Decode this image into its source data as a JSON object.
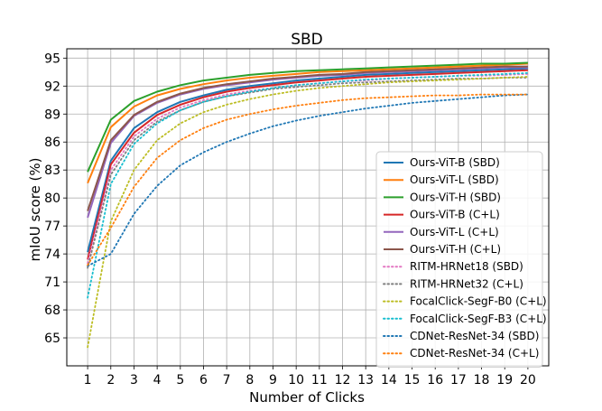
{
  "chart_data": {
    "type": "line",
    "title": "SBD",
    "xlabel": "Number of Clicks",
    "ylabel": "mIoU score (%)",
    "xlim": [
      0.1,
      20.9
    ],
    "ylim": [
      62,
      96
    ],
    "x": [
      1,
      2,
      3,
      4,
      5,
      6,
      7,
      8,
      9,
      10,
      11,
      12,
      13,
      14,
      15,
      16,
      17,
      18,
      19,
      20
    ],
    "x_ticks": [
      1,
      2,
      3,
      4,
      5,
      6,
      7,
      8,
      9,
      10,
      11,
      12,
      13,
      14,
      15,
      16,
      17,
      18,
      19,
      20
    ],
    "y_ticks": [
      65,
      68,
      71,
      74,
      77,
      80,
      83,
      86,
      89,
      92,
      95
    ],
    "grid": true,
    "legend_position": "lower-right",
    "series": [
      {
        "name": "Ours-ViT-B (SBD)",
        "color": "#1f77b4",
        "style": "solid",
        "values": [
          74.2,
          84.0,
          87.5,
          89.2,
          90.3,
          91.0,
          91.6,
          92.0,
          92.3,
          92.6,
          92.8,
          93.0,
          93.2,
          93.3,
          93.4,
          93.5,
          93.6,
          93.7,
          93.8,
          93.9
        ]
      },
      {
        "name": "Ours-ViT-L (SBD)",
        "color": "#ff7f0e",
        "style": "solid",
        "values": [
          81.6,
          87.6,
          89.8,
          91.0,
          91.7,
          92.2,
          92.6,
          92.9,
          93.1,
          93.3,
          93.5,
          93.6,
          93.7,
          93.8,
          93.9,
          94.0,
          94.1,
          94.2,
          94.3,
          94.4
        ]
      },
      {
        "name": "Ours-ViT-H (SBD)",
        "color": "#2ca02c",
        "style": "solid",
        "values": [
          82.8,
          88.4,
          90.4,
          91.4,
          92.1,
          92.6,
          92.9,
          93.2,
          93.4,
          93.6,
          93.7,
          93.8,
          93.9,
          94.0,
          94.1,
          94.2,
          94.3,
          94.4,
          94.4,
          94.5
        ]
      },
      {
        "name": "Ours-ViT-B (C+L)",
        "color": "#d62728",
        "style": "solid",
        "values": [
          73.4,
          83.6,
          87.0,
          88.9,
          90.0,
          90.8,
          91.4,
          91.8,
          92.1,
          92.4,
          92.6,
          92.8,
          93.0,
          93.1,
          93.2,
          93.3,
          93.4,
          93.5,
          93.6,
          93.7
        ]
      },
      {
        "name": "Ours-ViT-L (C+L)",
        "color": "#9467bd",
        "style": "solid",
        "values": [
          77.9,
          85.9,
          88.8,
          90.2,
          91.1,
          91.7,
          92.1,
          92.4,
          92.7,
          92.9,
          93.1,
          93.2,
          93.4,
          93.5,
          93.6,
          93.7,
          93.8,
          93.9,
          94.0,
          94.0
        ]
      },
      {
        "name": "Ours-ViT-H (C+L)",
        "color": "#8c564b",
        "style": "solid",
        "values": [
          78.6,
          86.2,
          88.9,
          90.3,
          91.2,
          91.8,
          92.2,
          92.5,
          92.8,
          93.0,
          93.2,
          93.3,
          93.5,
          93.6,
          93.7,
          93.8,
          93.9,
          94.0,
          94.1,
          94.1
        ]
      },
      {
        "name": "RITM-HRNet18 (SBD)",
        "color": "#e377c2",
        "style": "dotted",
        "values": [
          73.0,
          83.0,
          86.6,
          88.5,
          89.7,
          90.5,
          91.1,
          91.5,
          91.8,
          92.1,
          92.3,
          92.5,
          92.6,
          92.8,
          92.9,
          93.0,
          93.1,
          93.1,
          93.2,
          93.3
        ]
      },
      {
        "name": "RITM-HRNet32 (C+L)",
        "color": "#7f7f7f",
        "style": "dotted",
        "values": [
          72.5,
          82.5,
          86.2,
          88.2,
          89.4,
          90.3,
          90.9,
          91.3,
          91.7,
          91.9,
          92.1,
          92.3,
          92.4,
          92.5,
          92.6,
          92.7,
          92.8,
          92.8,
          92.9,
          92.9
        ]
      },
      {
        "name": "FocalClick-SegF-B0 (C+L)",
        "color": "#bcbd22",
        "style": "dotted",
        "values": [
          64.0,
          77.5,
          83.0,
          86.2,
          88.0,
          89.2,
          90.0,
          90.6,
          91.1,
          91.5,
          91.8,
          92.0,
          92.2,
          92.4,
          92.5,
          92.6,
          92.7,
          92.8,
          92.9,
          93.0
        ]
      },
      {
        "name": "FocalClick-SegF-B3 (C+L)",
        "color": "#17becf",
        "style": "dotted",
        "values": [
          69.3,
          81.5,
          85.8,
          88.0,
          89.4,
          90.3,
          90.9,
          91.4,
          91.8,
          92.1,
          92.3,
          92.5,
          92.7,
          92.8,
          92.9,
          93.0,
          93.1,
          93.2,
          93.3,
          93.4
        ]
      },
      {
        "name": "CDNet-ResNet-34 (SBD)",
        "color": "#1f77b4",
        "style": "dotted",
        "values": [
          72.7,
          74.0,
          78.3,
          81.3,
          83.5,
          84.9,
          86.0,
          86.9,
          87.7,
          88.3,
          88.8,
          89.2,
          89.6,
          89.9,
          90.2,
          90.4,
          90.6,
          90.8,
          91.0,
          91.1
        ]
      },
      {
        "name": "CDNet-ResNet-34 (C+L)",
        "color": "#ff7f0e",
        "style": "dotted",
        "values": [
          72.8,
          76.8,
          81.2,
          84.3,
          86.2,
          87.5,
          88.4,
          89.0,
          89.5,
          89.9,
          90.2,
          90.5,
          90.7,
          90.8,
          90.9,
          91.0,
          91.0,
          91.1,
          91.1,
          91.1
        ]
      }
    ]
  }
}
